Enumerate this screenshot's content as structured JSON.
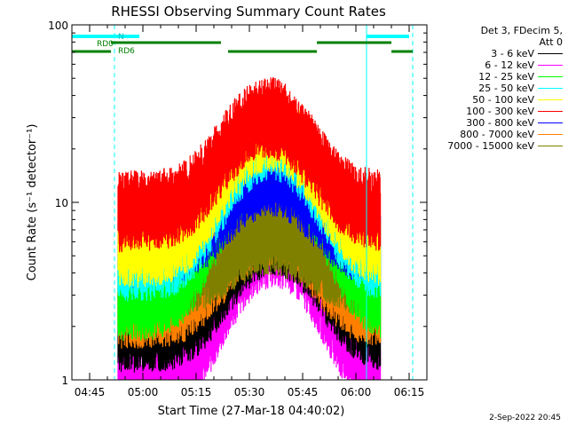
{
  "chart_data": {
    "type": "line",
    "title": "RHESSI Observing Summary Count Rates",
    "ylabel": "Count Rate (s⁻¹ detector⁻¹)",
    "xlabel": "Start Time (27-Mar-18 04:40:02)",
    "yscale": "log",
    "ylim": [
      1,
      100
    ],
    "xlim_minutes": [
      "04:40",
      "06:20"
    ],
    "x_ticks": [
      "04:45",
      "05:00",
      "05:15",
      "05:30",
      "05:45",
      "06:00",
      "06:15"
    ],
    "y_ticks": [
      "1",
      "10",
      "100"
    ],
    "grid": false,
    "legend_position": "right",
    "legend_header": [
      "Det 3, FDecim 5,",
      "Att 0"
    ],
    "series": [
      {
        "name": "3 - 6 keV",
        "color": "#000000",
        "start": "04:53",
        "end": "06:07",
        "low": 2.0,
        "peak": 7.0,
        "peak_time": "05:37"
      },
      {
        "name": "6 - 12 keV",
        "color": "#ff00ff",
        "start": "04:53",
        "end": "06:07",
        "low": 1.0,
        "peak": 6.0,
        "peak_time": "05:37"
      },
      {
        "name": "12 - 25 keV",
        "color": "#00ff00",
        "start": "04:53",
        "end": "06:07",
        "low": 3.0,
        "peak": 20.0,
        "peak_time": "05:36"
      },
      {
        "name": "25 - 50 keV",
        "color": "#00ffff",
        "start": "04:53",
        "end": "06:07",
        "low": 5.0,
        "peak": 24.0,
        "peak_time": "05:36"
      },
      {
        "name": "50 - 100 keV",
        "color": "#ffff00",
        "start": "04:53",
        "end": "06:07",
        "low": 6.0,
        "peak": 27.0,
        "peak_time": "05:36"
      },
      {
        "name": "100 - 300 keV",
        "color": "#ff0000",
        "start": "04:53",
        "end": "06:07",
        "low": 9.5,
        "peak": 32.0,
        "peak_time": "05:35"
      },
      {
        "name": "300 - 800 keV",
        "color": "#0000ff",
        "start": "04:53",
        "end": "06:07",
        "low": 6.0,
        "peak": 15.0,
        "peak_time": "05:36"
      },
      {
        "name": "800 - 7000 keV",
        "color": "#ff8000",
        "start": "04:53",
        "end": "06:07",
        "low": 2.7,
        "peak": 8.0,
        "peak_time": "05:36"
      },
      {
        "name": "7000 - 15000 keV",
        "color": "#808000",
        "start": "04:53",
        "end": "06:07",
        "low": 4.0,
        "peak": 7.0,
        "peak_time": "05:36"
      }
    ],
    "annotations": {
      "N_label": "N",
      "RD0_label": "RD0",
      "RD6_label": "RD6",
      "cyan_bars": [
        [
          "04:40",
          "04:59"
        ],
        [
          "06:03",
          "06:15"
        ]
      ],
      "green_bars_upper": [
        [
          "04:51",
          "05:22"
        ],
        [
          "05:49",
          "06:10"
        ]
      ],
      "green_bars_lower": [
        [
          "04:40",
          "04:51"
        ],
        [
          "05:24",
          "05:49"
        ],
        [
          "06:10",
          "06:16"
        ]
      ],
      "dashed_cyan_lines": [
        "04:52",
        "06:16"
      ],
      "solid_cyan_lines": [
        "04:40",
        "06:03"
      ]
    }
  },
  "footer": {
    "timestamp": "2-Sep-2022 20:45"
  }
}
